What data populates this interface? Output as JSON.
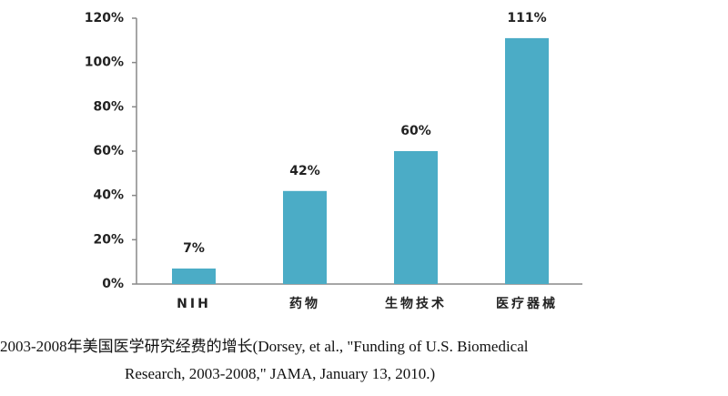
{
  "chart_data": {
    "type": "bar",
    "categories": [
      "NIH",
      "药物",
      "生物技术",
      "医疗器械"
    ],
    "values": [
      7,
      42,
      60,
      111
    ],
    "value_labels": [
      "7%",
      "42%",
      "60%",
      "111%"
    ],
    "color": "#4bacc6",
    "ylim": [
      0,
      120
    ],
    "yticks": [
      {
        "value": 0,
        "label": "0%"
      },
      {
        "value": 20,
        "label": "20%"
      },
      {
        "value": 40,
        "label": "40%"
      },
      {
        "value": 60,
        "label": "60%"
      },
      {
        "value": 80,
        "label": "80%"
      },
      {
        "value": 100,
        "label": "100%"
      },
      {
        "value": 120,
        "label": "120%"
      }
    ],
    "grid": false,
    "caption": [
      "2003-2008年美国医学研究经费的增长(Dorsey, et al., \"Funding of U.S. Biomedical",
      "Research, 2003-2008,\" JAMA, January 13, 2010.)"
    ]
  }
}
